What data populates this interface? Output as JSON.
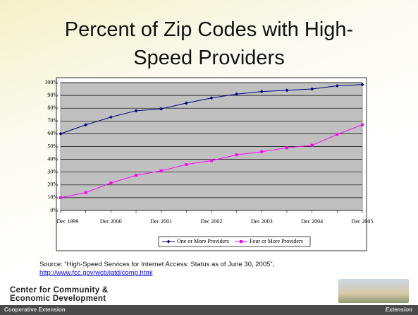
{
  "chart_data": {
    "type": "line",
    "title": "Percent of Zip Codes with High-Speed Providers",
    "categories": [
      "Dec 1999",
      null,
      "Dec 2000",
      null,
      "Dec 2001",
      null,
      "Dec 2002",
      null,
      "Dec 2003",
      null,
      "Dec 2004",
      null,
      "Dec 2005"
    ],
    "series": [
      {
        "name": "One or More Providers",
        "color": "#000080",
        "values": [
          60,
          67,
          73,
          78,
          79.5,
          84,
          88,
          91,
          93,
          94,
          95,
          97.5,
          98.5
        ]
      },
      {
        "name": "Four or More Providers",
        "color": "#ff00ff",
        "values": [
          10,
          14,
          21.5,
          27.5,
          31,
          36,
          39,
          43.5,
          46,
          49,
          51,
          59.5,
          67
        ]
      }
    ],
    "ylim": [
      0,
      100
    ],
    "yticks": [
      {
        "value": 0,
        "label": "0%"
      },
      {
        "value": 10,
        "label": "10%"
      },
      {
        "value": 20,
        "label": "20%"
      },
      {
        "value": 30,
        "label": "30%"
      },
      {
        "value": 40,
        "label": "40%"
      },
      {
        "value": 50,
        "label": "50%"
      },
      {
        "value": 60,
        "label": "60%"
      },
      {
        "value": 70,
        "label": "70%"
      },
      {
        "value": 80,
        "label": "80%"
      },
      {
        "value": 90,
        "label": "90%"
      },
      {
        "value": 100,
        "label": "100%"
      }
    ],
    "grid": true,
    "legend": "bottom"
  },
  "source": "Source: “High-Speed Services for Internet Access: Status as of June 30, 2005”,",
  "source_link": "http://www.fcc.gov/wcb/iatd/comp.html",
  "logo": [
    "Center for Community &",
    "Economic Development"
  ],
  "footer": {
    "left": "Cooperative Extension",
    "right": "Extension"
  }
}
